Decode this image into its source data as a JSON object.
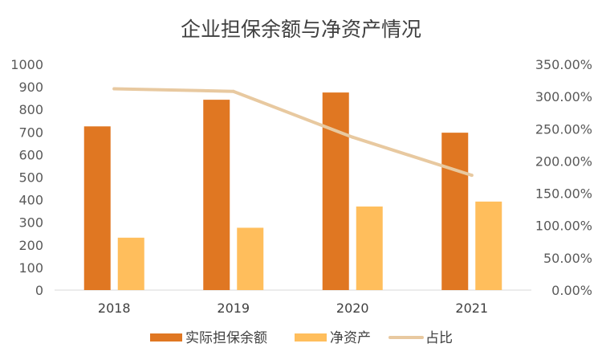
{
  "colors": {
    "guarantee": "#E07722",
    "net_assets": "#FFBE5C",
    "ratio": "#E8C9A0",
    "axis": "#D9D9D9",
    "text": "#404040"
  },
  "chart_data": {
    "type": "bar",
    "title": "企业担保余额与净资产情况",
    "categories": [
      "2018",
      "2019",
      "2020",
      "2021"
    ],
    "series": [
      {
        "name": "实际担保余额",
        "type": "bar",
        "axis": "left",
        "values": [
          725,
          843,
          875,
          697
        ]
      },
      {
        "name": "净资产",
        "type": "bar",
        "axis": "left",
        "values": [
          232,
          276,
          370,
          392
        ]
      },
      {
        "name": "占比",
        "type": "line",
        "axis": "right",
        "values": [
          3.12,
          3.08,
          2.37,
          1.78
        ]
      }
    ],
    "y_left": {
      "ylim": [
        0,
        1000
      ],
      "ticks": [
        "0",
        "100",
        "200",
        "300",
        "400",
        "500",
        "600",
        "700",
        "800",
        "900",
        "1000"
      ]
    },
    "y_right": {
      "ylim": [
        0,
        3.5
      ],
      "ticks": [
        "0.00%",
        "50.00%",
        "100.00%",
        "150.00%",
        "200.00%",
        "250.00%",
        "300.00%",
        "350.00%"
      ]
    },
    "grid": false,
    "legend": "bottom"
  }
}
